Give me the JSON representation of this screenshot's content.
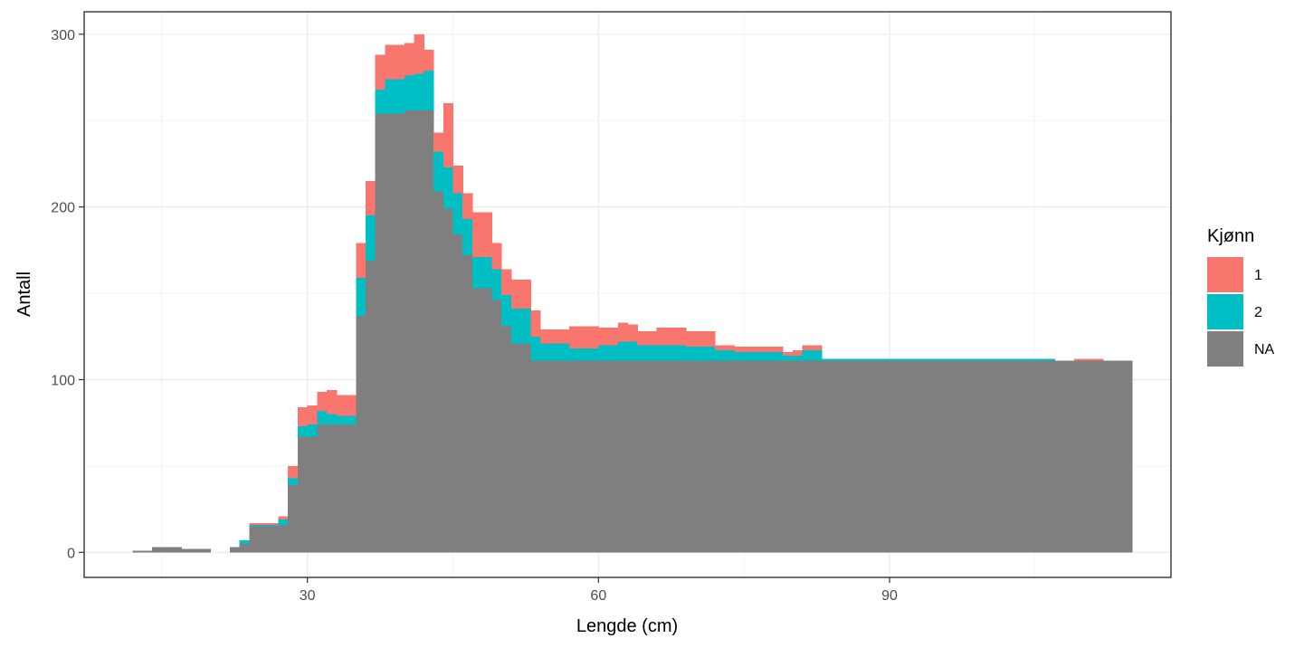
{
  "chart_data": {
    "type": "bar",
    "stacked": true,
    "xlabel": "Lengde (cm)",
    "ylabel": "Antall",
    "xlim": [
      7,
      119
    ],
    "ylim": [
      -14.5,
      313
    ],
    "x_ticks": [
      30,
      60,
      90
    ],
    "y_ticks": [
      0,
      100,
      200,
      300
    ],
    "grid": true,
    "legend": {
      "title": "Kjønn",
      "position": "right"
    },
    "bin_starts": [
      12,
      13,
      14,
      15,
      16,
      17,
      18,
      19,
      20,
      21,
      22,
      23,
      24,
      25,
      26,
      27,
      28,
      29,
      30,
      31,
      32,
      33,
      34,
      35,
      36,
      37,
      38,
      39,
      40,
      41,
      42,
      43,
      44,
      45,
      46,
      47,
      48,
      49,
      50,
      51,
      52,
      53,
      54,
      55,
      56,
      57,
      58,
      59,
      60,
      61,
      62,
      63,
      64,
      65,
      66,
      67,
      68,
      69,
      70,
      71,
      72,
      73,
      74,
      75,
      76,
      77,
      78,
      79,
      80,
      81,
      82,
      83,
      84,
      85,
      86,
      87,
      88,
      89,
      90,
      91,
      92,
      93,
      94,
      95,
      96,
      97,
      98,
      99,
      100,
      101,
      102,
      103,
      104,
      105,
      106,
      107,
      108,
      109,
      110,
      111,
      112,
      113,
      114
    ],
    "series": [
      {
        "name": "1",
        "color": "#F8766D",
        "values": [
          0,
          0,
          0,
          0,
          0,
          0,
          0,
          0,
          0,
          0,
          0,
          0,
          1,
          1,
          1,
          2,
          7,
          11,
          11,
          11,
          14,
          12,
          12,
          20,
          20,
          20,
          20,
          20,
          19,
          23,
          12,
          11,
          37,
          16,
          15,
          26,
          26,
          15,
          15,
          17,
          17,
          15,
          8,
          8,
          8,
          13,
          13,
          13,
          10,
          10,
          11,
          10,
          8,
          8,
          10,
          10,
          10,
          9,
          9,
          9,
          3,
          3,
          3,
          3,
          3,
          3,
          3,
          2,
          3,
          3,
          3,
          0,
          0,
          0,
          0,
          0,
          0,
          0,
          0,
          0,
          0,
          0,
          0,
          0,
          0,
          0,
          0,
          0,
          0,
          0,
          0,
          0,
          0,
          0,
          0,
          0,
          0,
          1,
          1,
          1,
          0,
          0,
          0
        ]
      },
      {
        "name": "2",
        "color": "#00BFC4",
        "values": [
          0,
          0,
          0,
          0,
          0,
          0,
          0,
          0,
          0,
          0,
          0,
          2,
          1,
          1,
          1,
          3,
          4,
          6,
          7,
          8,
          6,
          5,
          5,
          22,
          26,
          14,
          20,
          20,
          20,
          21,
          23,
          23,
          24,
          24,
          21,
          18,
          18,
          18,
          18,
          20,
          20,
          14,
          10,
          10,
          10,
          7,
          7,
          7,
          9,
          9,
          11,
          11,
          9,
          9,
          9,
          9,
          9,
          8,
          8,
          8,
          6,
          6,
          5,
          5,
          5,
          5,
          5,
          3,
          3,
          6,
          6,
          1,
          1,
          1,
          1,
          1,
          1,
          1,
          1,
          1,
          1,
          1,
          1,
          1,
          1,
          1,
          1,
          1,
          1,
          1,
          1,
          1,
          1,
          1,
          1,
          0,
          0,
          0,
          0,
          0,
          0,
          0,
          0
        ]
      },
      {
        "name": "NA",
        "color": "#7F7F7F",
        "values": [
          1,
          1,
          3,
          3,
          3,
          2,
          2,
          2,
          0,
          0,
          3,
          5,
          15,
          15,
          15,
          16,
          39,
          67,
          67,
          74,
          74,
          74,
          74,
          137,
          169,
          254,
          254,
          254,
          256,
          256,
          256,
          209,
          199,
          184,
          172,
          153,
          153,
          146,
          131,
          121,
          121,
          111,
          111,
          111,
          111,
          111,
          111,
          111,
          111,
          111,
          111,
          111,
          111,
          111,
          111,
          111,
          111,
          111,
          111,
          111,
          111,
          111,
          111,
          111,
          111,
          111,
          111,
          111,
          111,
          111,
          111,
          111,
          111,
          111,
          111,
          111,
          111,
          111,
          111,
          111,
          111,
          111,
          111,
          111,
          111,
          111,
          111,
          111,
          111,
          111,
          111,
          111,
          111,
          111,
          111,
          111,
          111,
          111,
          111,
          111,
          111,
          111,
          111
        ]
      }
    ]
  }
}
